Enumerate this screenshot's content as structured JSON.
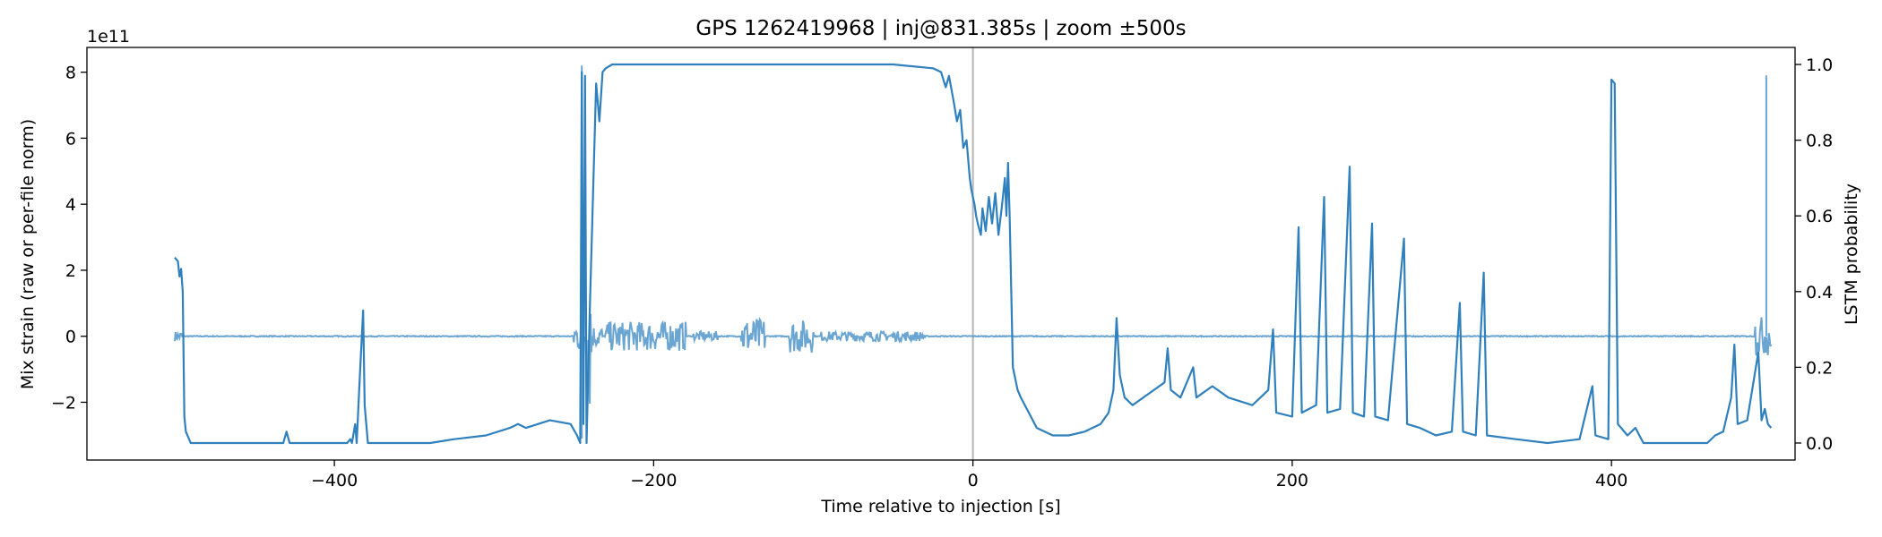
{
  "chart_data": {
    "type": "line",
    "title": "GPS 1262419968 | inj@831.385s | zoom ±500s",
    "xlabel": "Time relative to injection [s]",
    "ylabel": "Mix strain (raw or per-file norm)",
    "y2label": "LSTM probability",
    "y_offset_label": "1e11",
    "xlim": [
      -555,
      515
    ],
    "ylim": [
      -3.75,
      8.75
    ],
    "y2lim": [
      -0.045,
      1.045
    ],
    "x_ticks": [
      -400,
      -200,
      0,
      200,
      400
    ],
    "x_tick_labels": [
      "−400",
      "−200",
      "0",
      "200",
      "400"
    ],
    "y_ticks": [
      -2,
      0,
      2,
      4,
      6,
      8
    ],
    "y_tick_labels": [
      "−2",
      "0",
      "2",
      "4",
      "6",
      "8"
    ],
    "y2_ticks": [
      0.0,
      0.2,
      0.4,
      0.6,
      0.8,
      1.0
    ],
    "y2_tick_labels": [
      "0.0",
      "0.2",
      "0.4",
      "0.6",
      "0.8",
      "1.0"
    ],
    "grid": false,
    "injection_marker_x": 0,
    "colors": {
      "strain": "#5b9bcc",
      "prob": "#2f80bd",
      "marker": "#b5b5b5"
    },
    "strain_bursts": [
      [
        -500,
        -495,
        0.15
      ],
      [
        -250,
        -243,
        0.5
      ],
      [
        -242,
        -239,
        2.5
      ],
      [
        -238,
        -232,
        0.35
      ],
      [
        -230,
        -180,
        0.45
      ],
      [
        -175,
        -160,
        0.15
      ],
      [
        -145,
        -130,
        0.55
      ],
      [
        -115,
        -100,
        0.5
      ],
      [
        -95,
        -30,
        0.15
      ],
      [
        490,
        500,
        0.6
      ]
    ],
    "strain_spikes": [
      [
        -245,
        8.2
      ],
      [
        -245,
        -3.1
      ],
      [
        497,
        7.9
      ]
    ],
    "prob_series": [
      [
        -500,
        0.49
      ],
      [
        -498,
        0.48
      ],
      [
        -497,
        0.44
      ],
      [
        -496,
        0.46
      ],
      [
        -495,
        0.4
      ],
      [
        -494,
        0.07
      ],
      [
        -493,
        0.03
      ],
      [
        -490,
        0.0
      ],
      [
        -432,
        0.0
      ],
      [
        -430,
        0.03
      ],
      [
        -428,
        0.0
      ],
      [
        -392,
        0.0
      ],
      [
        -390,
        0.01
      ],
      [
        -389,
        0.0
      ],
      [
        -387,
        0.05
      ],
      [
        -386,
        0.0
      ],
      [
        -384,
        0.18
      ],
      [
        -382,
        0.35
      ],
      [
        -381,
        0.1
      ],
      [
        -379,
        0.0
      ],
      [
        -340,
        0.0
      ],
      [
        -325,
        0.01
      ],
      [
        -305,
        0.02
      ],
      [
        -290,
        0.04
      ],
      [
        -285,
        0.05
      ],
      [
        -280,
        0.04
      ],
      [
        -265,
        0.06
      ],
      [
        -252,
        0.05
      ],
      [
        -248,
        0.02
      ],
      [
        -246,
        0.0
      ],
      [
        -245,
        0.98
      ],
      [
        -244,
        0.05
      ],
      [
        -243,
        0.97
      ],
      [
        -242,
        0.0
      ],
      [
        -240,
        0.35
      ],
      [
        -236,
        0.95
      ],
      [
        -234,
        0.85
      ],
      [
        -232,
        0.98
      ],
      [
        -230,
        0.99
      ],
      [
        -226,
        1.0
      ],
      [
        -150,
        1.0
      ],
      [
        -100,
        1.0
      ],
      [
        -50,
        1.0
      ],
      [
        -25,
        0.99
      ],
      [
        -20,
        0.98
      ],
      [
        -17,
        0.94
      ],
      [
        -15,
        0.97
      ],
      [
        -12,
        0.9
      ],
      [
        -10,
        0.85
      ],
      [
        -8,
        0.88
      ],
      [
        -6,
        0.78
      ],
      [
        -4,
        0.8
      ],
      [
        -2,
        0.7
      ],
      [
        -1,
        0.67
      ],
      [
        0,
        0.65
      ],
      [
        1,
        0.63
      ],
      [
        2,
        0.6
      ],
      [
        3,
        0.58
      ],
      [
        5,
        0.55
      ],
      [
        6,
        0.62
      ],
      [
        8,
        0.56
      ],
      [
        10,
        0.65
      ],
      [
        12,
        0.58
      ],
      [
        14,
        0.66
      ],
      [
        16,
        0.55
      ],
      [
        18,
        0.62
      ],
      [
        20,
        0.7
      ],
      [
        21,
        0.6
      ],
      [
        22,
        0.74
      ],
      [
        23,
        0.6
      ],
      [
        25,
        0.2
      ],
      [
        28,
        0.14
      ],
      [
        30,
        0.12
      ],
      [
        35,
        0.08
      ],
      [
        40,
        0.04
      ],
      [
        50,
        0.02
      ],
      [
        60,
        0.02
      ],
      [
        70,
        0.03
      ],
      [
        80,
        0.05
      ],
      [
        85,
        0.08
      ],
      [
        88,
        0.14
      ],
      [
        90,
        0.33
      ],
      [
        92,
        0.18
      ],
      [
        95,
        0.12
      ],
      [
        100,
        0.1
      ],
      [
        110,
        0.13
      ],
      [
        120,
        0.16
      ],
      [
        122,
        0.25
      ],
      [
        124,
        0.14
      ],
      [
        130,
        0.12
      ],
      [
        138,
        0.2
      ],
      [
        140,
        0.12
      ],
      [
        150,
        0.15
      ],
      [
        160,
        0.12
      ],
      [
        175,
        0.1
      ],
      [
        185,
        0.14
      ],
      [
        188,
        0.3
      ],
      [
        190,
        0.08
      ],
      [
        200,
        0.07
      ],
      [
        204,
        0.57
      ],
      [
        206,
        0.08
      ],
      [
        215,
        0.1
      ],
      [
        220,
        0.65
      ],
      [
        222,
        0.08
      ],
      [
        230,
        0.09
      ],
      [
        236,
        0.73
      ],
      [
        238,
        0.08
      ],
      [
        245,
        0.07
      ],
      [
        250,
        0.58
      ],
      [
        252,
        0.07
      ],
      [
        260,
        0.06
      ],
      [
        270,
        0.54
      ],
      [
        272,
        0.05
      ],
      [
        280,
        0.04
      ],
      [
        285,
        0.03
      ],
      [
        290,
        0.02
      ],
      [
        300,
        0.03
      ],
      [
        305,
        0.37
      ],
      [
        307,
        0.03
      ],
      [
        315,
        0.02
      ],
      [
        320,
        0.45
      ],
      [
        322,
        0.02
      ],
      [
        340,
        0.01
      ],
      [
        360,
        0.0
      ],
      [
        380,
        0.01
      ],
      [
        388,
        0.15
      ],
      [
        390,
        0.02
      ],
      [
        398,
        0.01
      ],
      [
        400,
        0.96
      ],
      [
        402,
        0.95
      ],
      [
        404,
        0.05
      ],
      [
        410,
        0.02
      ],
      [
        415,
        0.04
      ],
      [
        420,
        0.0
      ],
      [
        440,
        0.0
      ],
      [
        460,
        0.0
      ],
      [
        465,
        0.02
      ],
      [
        470,
        0.03
      ],
      [
        475,
        0.12
      ],
      [
        477,
        0.26
      ],
      [
        479,
        0.05
      ],
      [
        485,
        0.06
      ],
      [
        492,
        0.24
      ],
      [
        494,
        0.06
      ],
      [
        496,
        0.09
      ],
      [
        498,
        0.05
      ],
      [
        500,
        0.04
      ]
    ]
  }
}
